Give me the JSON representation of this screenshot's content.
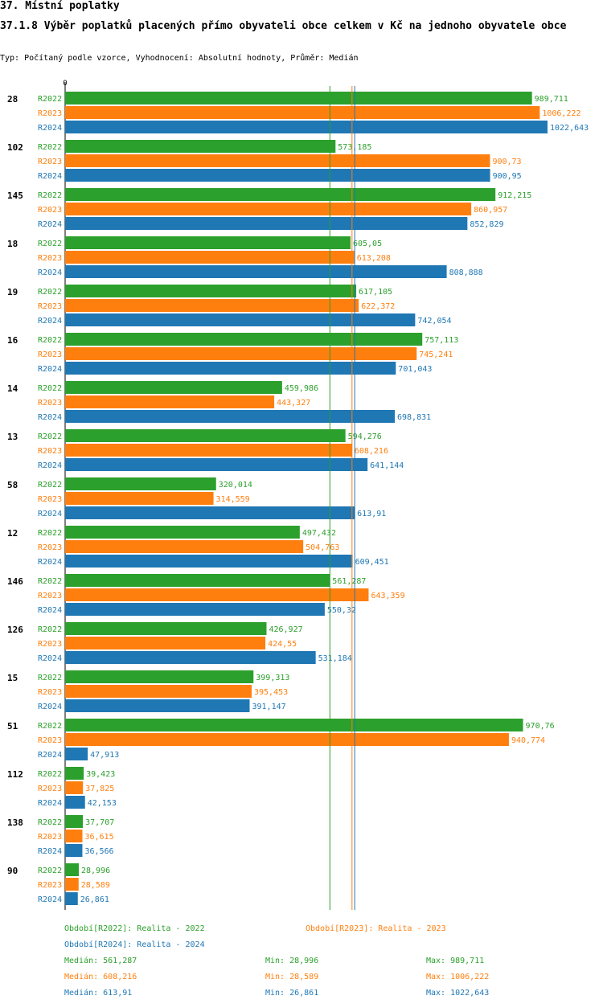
{
  "header": {
    "section": "37. Místní poplatky",
    "title": "37.1.8 Výběr poplatků placených přímo obyvateli obce celkem  v Kč na jednoho obyvatele obce",
    "subtitle": "Typ: Počítaný podle vzorce, Vyhodnocení: Absolutní hodnoty, Průměr: Medián"
  },
  "colors": {
    "R2022": "#2ca02c",
    "R2023": "#ff7f0e",
    "R2024": "#1f77b4"
  },
  "chart_data": {
    "type": "bar",
    "orientation": "horizontal",
    "axis_zero_label": "0",
    "xlim": [
      0,
      1045
    ],
    "series_names": [
      "R2022",
      "R2023",
      "R2024"
    ],
    "categories": [
      "28",
      "102",
      "145",
      "18",
      "19",
      "16",
      "14",
      "13",
      "58",
      "12",
      "146",
      "126",
      "15",
      "51",
      "112",
      "138",
      "90"
    ],
    "series": [
      {
        "name": "R2022",
        "values": [
          989.711,
          573.185,
          912.215,
          605.05,
          617.105,
          757.113,
          459.986,
          594.276,
          320.014,
          497.432,
          561.287,
          426.927,
          399.313,
          970.76,
          39.423,
          37.707,
          28.996
        ],
        "labels": [
          "989,711",
          "573,185",
          "912,215",
          "605,05",
          "617,105",
          "757,113",
          "459,986",
          "594,276",
          "320,014",
          "497,432",
          "561,287",
          "426,927",
          "399,313",
          "970,76",
          "39,423",
          "37,707",
          "28,996"
        ]
      },
      {
        "name": "R2023",
        "values": [
          1006.222,
          900.73,
          860.957,
          613.208,
          622.372,
          745.241,
          443.327,
          608.216,
          314.559,
          504.763,
          643.359,
          424.55,
          395.453,
          940.774,
          37.825,
          36.615,
          28.589
        ],
        "labels": [
          "1006,222",
          "900,73",
          "860,957",
          "613,208",
          "622,372",
          "745,241",
          "443,327",
          "608,216",
          "314,559",
          "504,763",
          "643,359",
          "424,55",
          "395,453",
          "940,774",
          "37,825",
          "36,615",
          "28,589"
        ]
      },
      {
        "name": "R2024",
        "values": [
          1022.643,
          900.95,
          852.829,
          808.888,
          742.054,
          701.043,
          698.831,
          641.144,
          613.91,
          609.451,
          550.32,
          531.184,
          391.147,
          47.913,
          42.153,
          36.566,
          26.861
        ],
        "labels": [
          "1022,643",
          "900,95",
          "852,829",
          "808,888",
          "742,054",
          "701,043",
          "698,831",
          "641,144",
          "613,91",
          "609,451",
          "550,32",
          "531,184",
          "391,147",
          "47,913",
          "42,153",
          "36,566",
          "26,861"
        ]
      }
    ],
    "medians": [
      561.287,
      608.216,
      613.91
    ]
  },
  "legend": {
    "r2022": "Období[R2022]: Realita - 2022",
    "r2023": "Období[R2023]: Realita - 2023",
    "r2024": "Období[R2024]: Realita - 2024"
  },
  "stats": [
    {
      "median": "Medián: 561,287",
      "min": "Min: 28,996",
      "max": "Max: 989,711"
    },
    {
      "median": "Medián: 608,216",
      "min": "Min: 28,589",
      "max": "Max: 1006,222"
    },
    {
      "median": "Medián: 613,91",
      "min": "Min: 26,861",
      "max": "Max: 1022,643"
    }
  ]
}
